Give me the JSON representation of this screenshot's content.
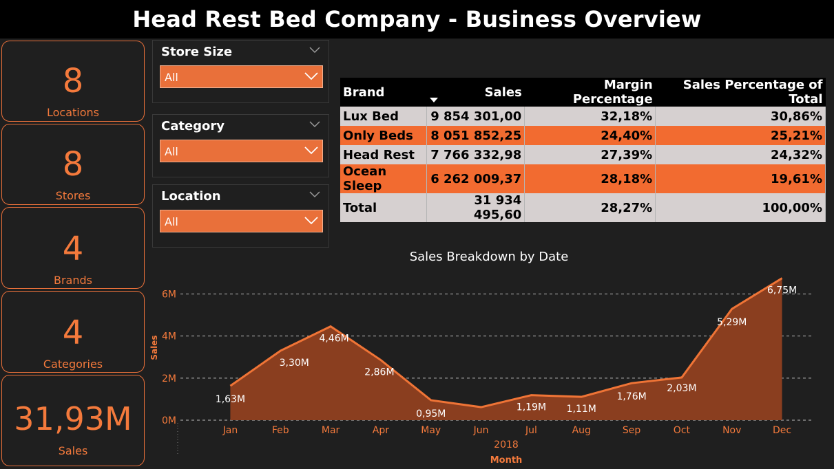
{
  "header": {
    "title": "Head Rest Bed Company - Business Overview"
  },
  "kpis": [
    {
      "value": "8",
      "label": "Locations"
    },
    {
      "value": "8",
      "label": "Stores"
    },
    {
      "value": "4",
      "label": "Brands"
    },
    {
      "value": "4",
      "label": "Categories"
    },
    {
      "value": "31,93M",
      "label": "Sales"
    }
  ],
  "slicers": [
    {
      "title": "Store Size",
      "value": "All"
    },
    {
      "title": "Category",
      "value": "All"
    },
    {
      "title": "Location",
      "value": "All"
    }
  ],
  "table": {
    "columns": [
      "Brand",
      "Sales",
      "Margin Percentage",
      "Sales Percentage of Total"
    ],
    "rows": [
      {
        "brand": "Lux Bed",
        "sales": "9 854 301,00",
        "margin": "32,18%",
        "share": "30,86%"
      },
      {
        "brand": "Only Beds",
        "sales": "8 051 852,25",
        "margin": "24,40%",
        "share": "25,21%"
      },
      {
        "brand": "Head Rest",
        "sales": "7 766 332,98",
        "margin": "27,39%",
        "share": "24,32%"
      },
      {
        "brand": "Ocean Sleep",
        "sales": "6 262 009,37",
        "margin": "28,18%",
        "share": "19,61%"
      }
    ],
    "total": {
      "brand": "Total",
      "sales": "31 934 495,60",
      "margin": "28,27%",
      "share": "100,00%"
    }
  },
  "colors": {
    "accent": "#f47a3c",
    "area": "#8a3e1f",
    "line": "#ef7436"
  },
  "chart_data": {
    "type": "area",
    "title": "Sales Breakdown by Date",
    "xlabel": "Month",
    "x_group_label": "2018",
    "ylabel": "Sales",
    "categories": [
      "Jan",
      "Feb",
      "Mar",
      "Apr",
      "May",
      "Jun",
      "Jul",
      "Aug",
      "Sep",
      "Oct",
      "Nov",
      "Dec"
    ],
    "values": [
      1.63,
      3.3,
      4.46,
      2.86,
      0.95,
      0.62,
      1.19,
      1.11,
      1.76,
      2.03,
      5.29,
      6.75
    ],
    "data_labels": [
      "1,63M",
      "3,30M",
      "4,46M",
      "2,86M",
      "0,95M",
      "",
      "1,19M",
      "1,11M",
      "1,76M",
      "2,03M",
      "5,29M",
      "6,75M"
    ],
    "y_ticks": [
      0,
      2,
      4,
      6
    ],
    "y_tick_labels": [
      "0M",
      "2M",
      "4M",
      "6M"
    ],
    "ylim": [
      0,
      6.9
    ],
    "grid": true
  }
}
